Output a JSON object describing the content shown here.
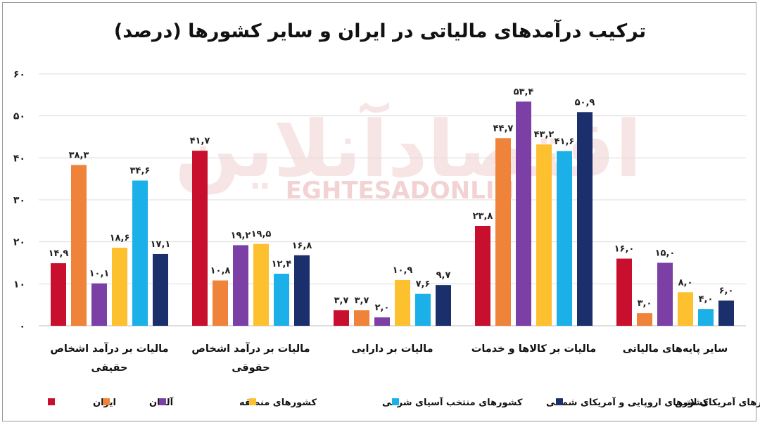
{
  "chart_data": {
    "type": "bar",
    "title": "ترکیب درآمدهای مالیاتی در ایران و سایر کشورها (درصد)",
    "categories": [
      [
        "مالیات بر درآمد اشخاص",
        "حقیقی"
      ],
      [
        "مالیات بر درآمد اشخاص",
        "حقوقی"
      ],
      [
        "مالیات بر دارایی"
      ],
      [
        "مالیات بر کالاها و خدمات"
      ],
      [
        "سایر پایه‌های مالیاتی"
      ]
    ],
    "series": [
      {
        "name": "ایران",
        "color": "#c8102e",
        "values": [
          14.9,
          41.7,
          3.7,
          23.8,
          16.0
        ],
        "labels": [
          "۱۴,۹",
          "۴۱,۷",
          "۳,۷",
          "۲۳,۸",
          "۱۶,۰"
        ]
      },
      {
        "name": "آلمان",
        "color": "#f0833a",
        "values": [
          38.3,
          10.8,
          3.7,
          44.7,
          3.0
        ],
        "labels": [
          "۳۸,۳",
          "۱۰,۸",
          "۳,۷",
          "۴۴,۷",
          "۳,۰"
        ]
      },
      {
        "name": "کشورهای منطقه",
        "color": "#7b3fa6",
        "values": [
          10.1,
          19.2,
          2.0,
          53.4,
          15.0
        ],
        "labels": [
          "۱۰,۱",
          "۱۹,۲",
          "۲,۰",
          "۵۳,۴",
          "۱۵,۰"
        ]
      },
      {
        "name": "کشورهای منتخب آسیای شرقی",
        "color": "#fdc02f",
        "values": [
          18.6,
          19.5,
          10.9,
          43.2,
          8.0
        ],
        "labels": [
          "۱۸,۶",
          "۱۹,۵",
          "۱۰,۹",
          "۴۳,۲",
          "۸,۰"
        ]
      },
      {
        "name": "کشورهای اروپایی و آمریکای شمالی",
        "color": "#1cb0e8",
        "values": [
          34.6,
          12.4,
          7.6,
          41.6,
          4.0
        ],
        "labels": [
          "۳۴,۶",
          "۱۲,۴",
          "۷,۶",
          "۴۱,۶",
          "۴,۰"
        ]
      },
      {
        "name": "کشورهای آمریکای لاتین",
        "color": "#1a2f6b",
        "values": [
          17.1,
          16.8,
          9.7,
          50.9,
          6.0
        ],
        "labels": [
          "۱۷,۱",
          "۱۶,۸",
          "۹,۷",
          "۵۰,۹",
          "۶,۰"
        ]
      }
    ],
    "ylim": [
      0,
      60
    ],
    "yticks": [
      0,
      10,
      20,
      30,
      40,
      50,
      60
    ],
    "ytick_labels": [
      "۰",
      "۱۰",
      "۲۰",
      "۳۰",
      "۴۰",
      "۵۰",
      "۶۰"
    ],
    "grid": true,
    "legend": "bottom"
  },
  "watermark": {
    "lines": [
      "اقتصادآنلاین",
      "EGHTESADONLINE"
    ],
    "color": "#f1d0d0"
  }
}
